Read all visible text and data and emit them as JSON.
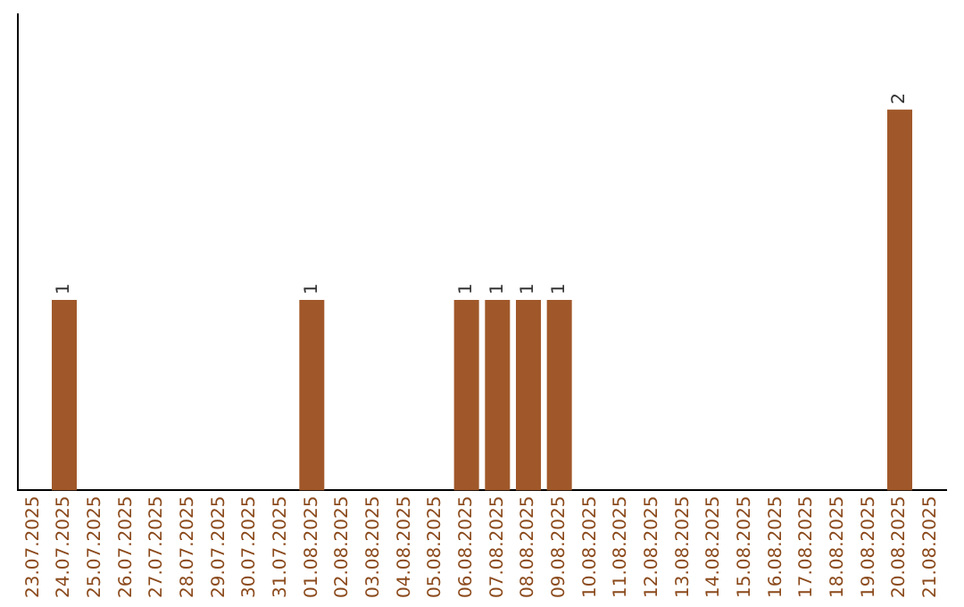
{
  "chart_data": {
    "type": "bar",
    "categories": [
      "23.07.2025",
      "24.07.2025",
      "25.07.2025",
      "26.07.2025",
      "27.07.2025",
      "28.07.2025",
      "29.07.2025",
      "30.07.2025",
      "31.07.2025",
      "01.08.2025",
      "02.08.2025",
      "03.08.2025",
      "04.08.2025",
      "05.08.2025",
      "06.08.2025",
      "07.08.2025",
      "08.08.2025",
      "09.08.2025",
      "10.08.2025",
      "11.08.2025",
      "12.08.2025",
      "13.08.2025",
      "14.08.2025",
      "15.08.2025",
      "16.08.2025",
      "17.08.2025",
      "18.08.2025",
      "19.08.2025",
      "20.08.2025",
      "21.08.2025"
    ],
    "values": [
      0,
      1,
      0,
      0,
      0,
      0,
      0,
      0,
      0,
      1,
      0,
      0,
      0,
      0,
      1,
      1,
      1,
      1,
      0,
      0,
      0,
      0,
      0,
      0,
      0,
      0,
      0,
      0,
      2,
      0
    ],
    "value_labels": [
      null,
      "1",
      null,
      null,
      null,
      null,
      null,
      null,
      null,
      "1",
      null,
      null,
      null,
      null,
      "1",
      "1",
      "1",
      "1",
      null,
      null,
      null,
      null,
      null,
      null,
      null,
      null,
      null,
      null,
      "2",
      null
    ],
    "color": "#a0582a",
    "grid": false,
    "legend": false,
    "tick_labels": "x"
  }
}
